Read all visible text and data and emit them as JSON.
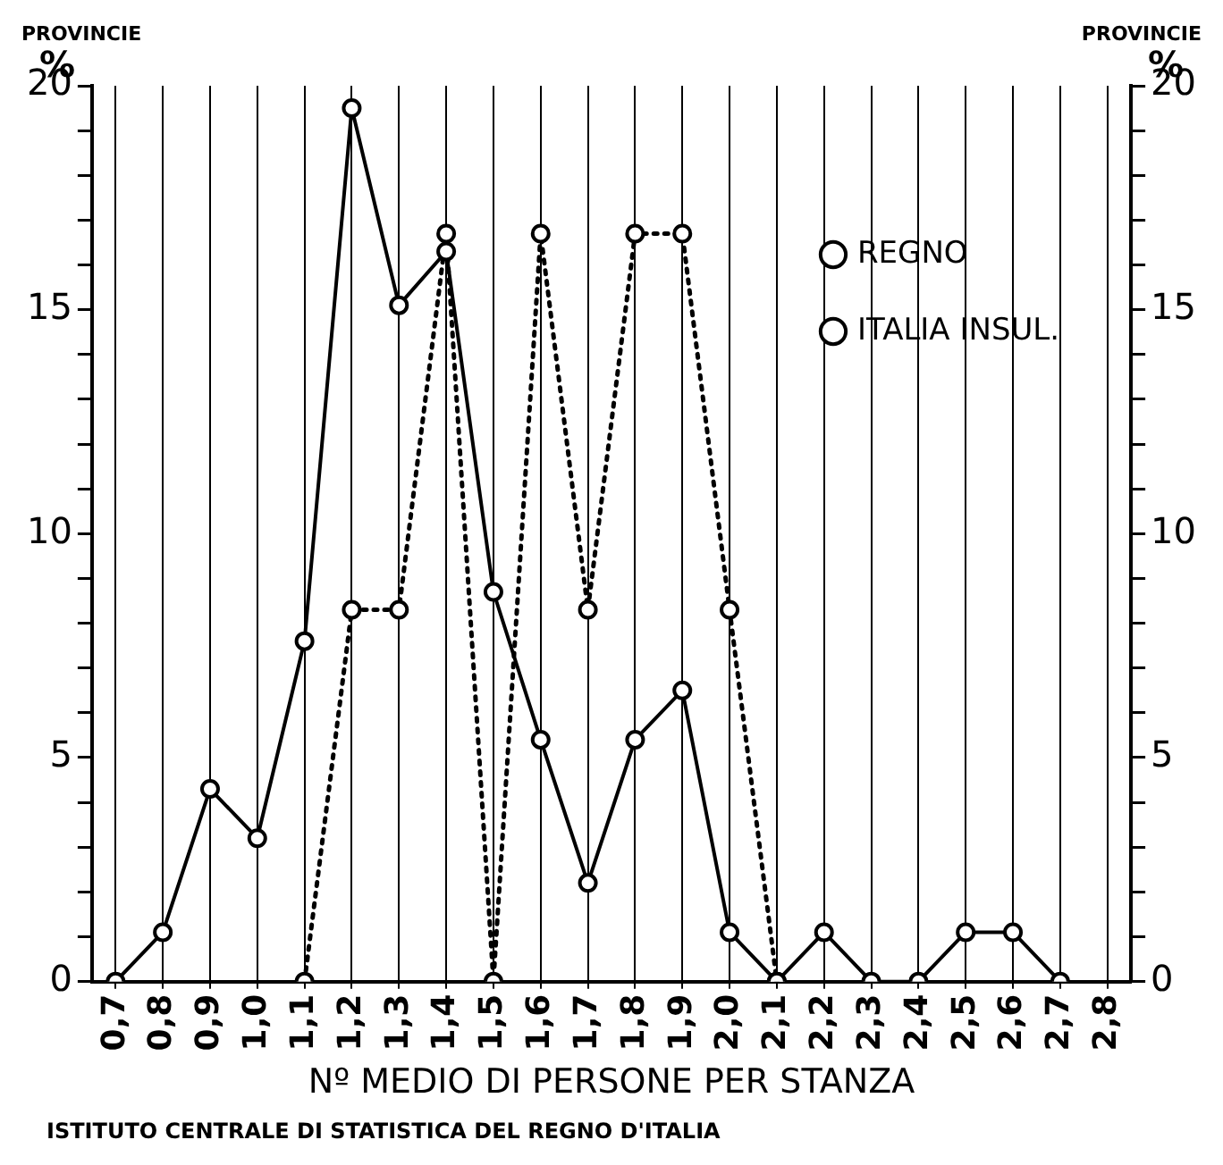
{
  "chart_data": {
    "type": "line",
    "xlabel": "Nº MEDIO DI PERSONE PER STANZA",
    "ylabel": "PROVINCIE %",
    "y2label": "PROVINCIE %",
    "annotations": [
      "ISTITUTO CENTRALE DI STATISTICA DEL REGNO D'ITALIA"
    ],
    "categories": [
      "0,7",
      "0,8",
      "0,9",
      "1,0",
      "1,1",
      "1,2",
      "1,3",
      "1,4",
      "1,5",
      "1,6",
      "1,7",
      "1,8",
      "1,9",
      "2,0",
      "2,1",
      "2,2",
      "2,3",
      "2,4",
      "2,5",
      "2,6",
      "2,7",
      "2,8"
    ],
    "series": [
      {
        "name": "REGNO",
        "color": "#000000",
        "line_style": "solid",
        "values": [
          0,
          1.1,
          4.3,
          3.2,
          7.6,
          19.5,
          15.1,
          16.3,
          8.7,
          5.4,
          2.2,
          5.4,
          6.5,
          1.1,
          0,
          1.1,
          0,
          0,
          1.1,
          1.1,
          0,
          null
        ]
      },
      {
        "name": "ITALIA INSUL.",
        "color": "#000000",
        "line_style": "dotted",
        "values": [
          null,
          null,
          null,
          null,
          0,
          8.3,
          8.3,
          16.7,
          0,
          16.7,
          8.3,
          16.7,
          16.7,
          8.3,
          0,
          null,
          null,
          null,
          null,
          null,
          null,
          null
        ]
      }
    ],
    "marker": "circle",
    "ylim": [
      0,
      20
    ],
    "yticks": [
      0,
      {
        "value": 1,
        "label": null
      },
      {
        "value": 2,
        "label": null
      },
      {
        "value": 3,
        "label": null
      },
      {
        "value": 4,
        "label": null
      },
      5,
      {
        "value": 6,
        "label": null
      },
      {
        "value": 7,
        "label": null
      },
      {
        "value": 8,
        "label": null
      },
      {
        "value": 9,
        "label": null
      },
      10,
      {
        "value": 11,
        "label": null
      },
      {
        "value": 12,
        "label": null
      },
      {
        "value": 13,
        "label": null
      },
      {
        "value": 14,
        "label": null
      },
      15,
      {
        "value": 16,
        "label": null
      },
      {
        "value": 17,
        "label": null
      },
      {
        "value": 18,
        "label": null
      },
      {
        "value": 19,
        "label": null
      },
      20
    ],
    "y2lim": [
      0,
      20
    ],
    "y2ticks": [
      0,
      {
        "value": 1,
        "label": null
      },
      {
        "value": 2,
        "label": null
      },
      {
        "value": 3,
        "label": null
      },
      {
        "value": 4,
        "label": null
      },
      5,
      {
        "value": 6,
        "label": null
      },
      {
        "value": 7,
        "label": null
      },
      {
        "value": 8,
        "label": null
      },
      {
        "value": 9,
        "label": null
      },
      10,
      {
        "value": 11,
        "label": null
      },
      {
        "value": 12,
        "label": null
      },
      {
        "value": 13,
        "label": null
      },
      {
        "value": 14,
        "label": null
      },
      15,
      {
        "value": 16,
        "label": null
      },
      {
        "value": 17,
        "label": null
      },
      {
        "value": 18,
        "label": null
      },
      {
        "value": 19,
        "label": null
      },
      20
    ],
    "grid": "x",
    "legend": "top right"
  }
}
